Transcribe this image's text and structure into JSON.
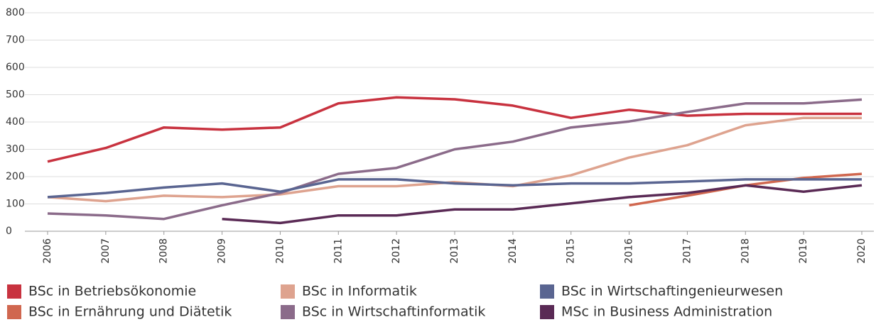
{
  "chart_data": {
    "type": "line",
    "x": [
      2006,
      2007,
      2008,
      2009,
      2010,
      2011,
      2012,
      2013,
      2014,
      2015,
      2016,
      2017,
      2018,
      2019,
      2020
    ],
    "xlim": [
      2006,
      2020
    ],
    "xticks": [
      2006,
      2007,
      2008,
      2009,
      2010,
      2011,
      2012,
      2013,
      2014,
      2015,
      2016,
      2017,
      2018,
      2019,
      2020
    ],
    "ylim": [
      0,
      800
    ],
    "yticks": [
      0,
      100,
      200,
      300,
      400,
      500,
      600,
      700,
      800
    ],
    "grid": true,
    "series": [
      {
        "name": "BSc in Betriebsökonomie",
        "color": "#c8323f",
        "values": [
          255,
          305,
          380,
          372,
          380,
          468,
          490,
          483,
          460,
          415,
          445,
          423,
          430,
          430,
          430
        ]
      },
      {
        "name": "BSc in Ernährung und Diätetik",
        "color": "#d0674f",
        "values": [
          null,
          null,
          null,
          null,
          null,
          null,
          null,
          null,
          null,
          null,
          95,
          130,
          168,
          195,
          210
        ]
      },
      {
        "name": "BSc in Informatik",
        "color": "#dea38f",
        "values": [
          125,
          110,
          130,
          125,
          135,
          165,
          165,
          180,
          165,
          205,
          270,
          315,
          388,
          415,
          415
        ]
      },
      {
        "name": "BSc in Wirtschaftinformatik",
        "color": "#8b6b8a",
        "values": [
          65,
          58,
          45,
          95,
          140,
          210,
          232,
          300,
          328,
          380,
          402,
          437,
          468,
          468,
          482
        ]
      },
      {
        "name": "BSc in Wirtschaftingenieurwesen",
        "color": "#5a6591",
        "values": [
          125,
          140,
          160,
          175,
          145,
          190,
          190,
          175,
          168,
          175,
          175,
          182,
          190,
          190,
          190
        ]
      },
      {
        "name": "MSc in Business Administration",
        "color": "#5a2a55",
        "values": [
          null,
          null,
          null,
          45,
          30,
          58,
          58,
          80,
          80,
          102,
          125,
          140,
          168,
          145,
          168
        ]
      }
    ]
  }
}
